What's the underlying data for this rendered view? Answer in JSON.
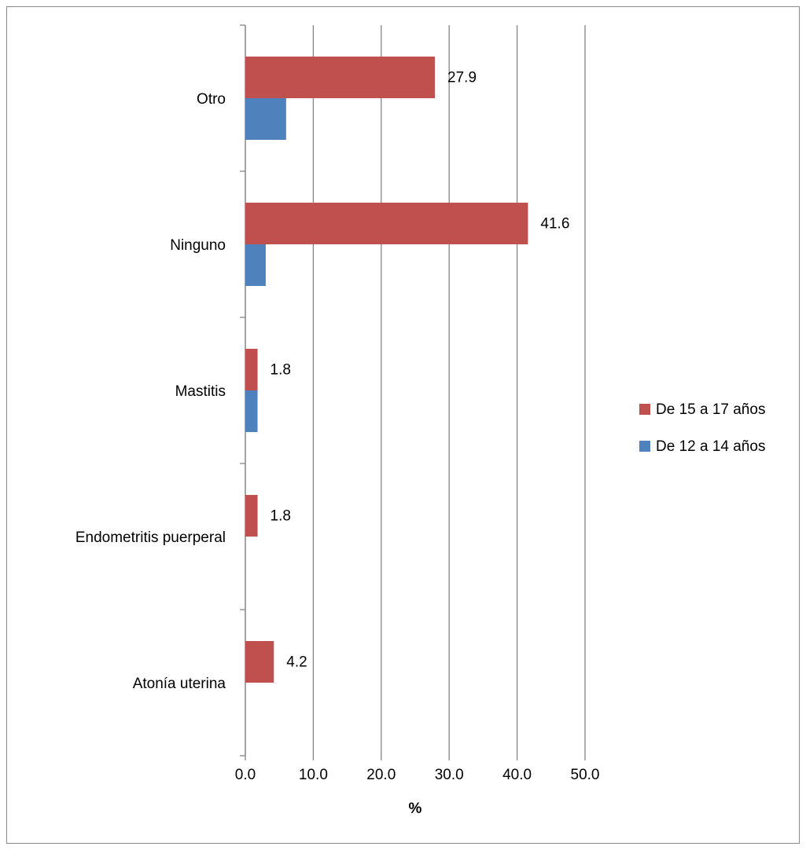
{
  "chart_data": {
    "type": "hbar",
    "categories": [
      "Otro",
      "Ninguno",
      "Mastitis",
      "Endometritis puerperal",
      "Atonía uterina"
    ],
    "series": [
      {
        "name": "De 15 a 17 años",
        "color": "#c0504d",
        "values": [
          27.9,
          41.6,
          1.8,
          1.8,
          4.2
        ],
        "labels": true
      },
      {
        "name": "De 12 a 14 años",
        "color": "#4f81bd",
        "values": [
          6.0,
          3.0,
          1.8,
          0,
          0
        ],
        "labels": false
      }
    ],
    "xlabel": "%",
    "xlim": [
      0,
      50
    ],
    "xticks": [
      {
        "value": 0,
        "label": "0.0"
      },
      {
        "value": 10,
        "label": "10.0"
      },
      {
        "value": 20,
        "label": "20.0"
      },
      {
        "value": 30,
        "label": "30.0"
      },
      {
        "value": 40,
        "label": "40.0"
      },
      {
        "value": 50,
        "label": "50.0"
      }
    ],
    "grid": true,
    "legend": "right"
  }
}
